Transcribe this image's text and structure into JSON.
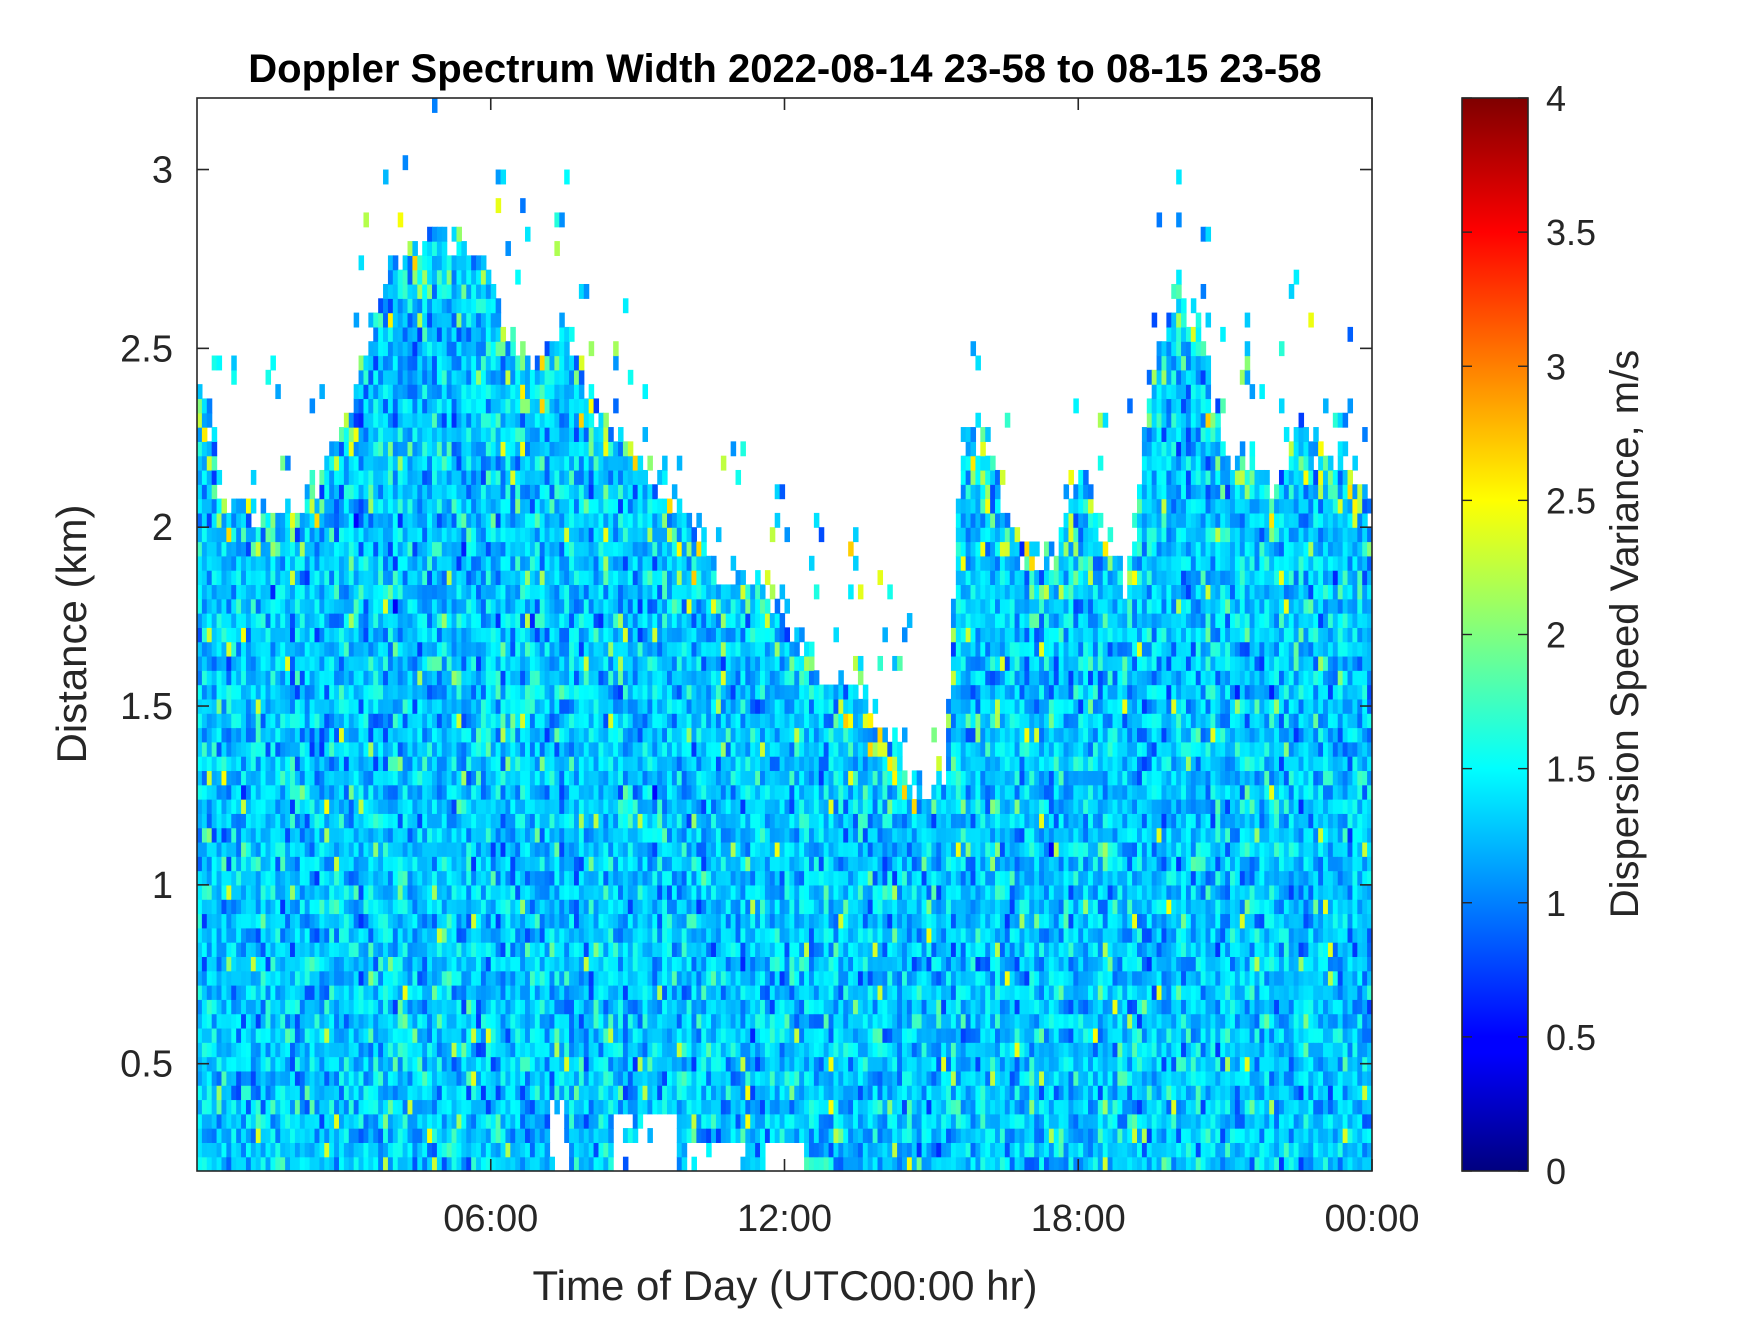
{
  "chart_data": {
    "type": "heatmap",
    "title": "Doppler Spectrum Width 2022-08-14 23-58 to 08-15 23-58",
    "xlabel": "Time of Day (UTC00:00 hr)",
    "ylabel": "Distance (km)",
    "x_range_hours": [
      0,
      24
    ],
    "y_range_km": [
      0.2,
      3.2
    ],
    "x_ticks": [
      {
        "value": 6,
        "label": "06:00"
      },
      {
        "value": 12,
        "label": "12:00"
      },
      {
        "value": 18,
        "label": "18:00"
      },
      {
        "value": 24,
        "label": "00:00"
      }
    ],
    "y_ticks": [
      {
        "value": 0.5,
        "label": "0.5"
      },
      {
        "value": 1,
        "label": "1"
      },
      {
        "value": 1.5,
        "label": "1.5"
      },
      {
        "value": 2,
        "label": "2"
      },
      {
        "value": 2.5,
        "label": "2.5"
      },
      {
        "value": 3,
        "label": "3"
      }
    ],
    "colorbar": {
      "label": "Dispersion Speed Variance, m/s",
      "range": [
        0,
        4
      ],
      "colormap": "jet",
      "ticks": [
        {
          "value": 0,
          "label": "0"
        },
        {
          "value": 0.5,
          "label": "0.5"
        },
        {
          "value": 1,
          "label": "1"
        },
        {
          "value": 1.5,
          "label": "1.5"
        },
        {
          "value": 2,
          "label": "2"
        },
        {
          "value": 2.5,
          "label": "2.5"
        },
        {
          "value": 3,
          "label": "3"
        },
        {
          "value": 3.5,
          "label": "3.5"
        },
        {
          "value": 4,
          "label": "4"
        }
      ]
    },
    "typical_value": 1.3,
    "signal_top_km": [
      [
        0.0,
        2.5
      ],
      [
        0.5,
        2.1
      ],
      [
        1.0,
        2.05
      ],
      [
        2.0,
        2.05
      ],
      [
        2.5,
        2.15
      ],
      [
        3.0,
        2.3
      ],
      [
        3.5,
        2.5
      ],
      [
        4.0,
        2.75
      ],
      [
        4.5,
        2.8
      ],
      [
        5.0,
        2.8
      ],
      [
        5.5,
        2.8
      ],
      [
        6.0,
        2.7
      ],
      [
        6.5,
        2.5
      ],
      [
        7.0,
        2.45
      ],
      [
        7.5,
        2.6
      ],
      [
        8.0,
        2.35
      ],
      [
        8.5,
        2.3
      ],
      [
        9.0,
        2.2
      ],
      [
        9.5,
        2.1
      ],
      [
        10.0,
        2.05
      ],
      [
        10.5,
        1.9
      ],
      [
        11.0,
        1.85
      ],
      [
        11.5,
        1.85
      ],
      [
        12.0,
        1.75
      ],
      [
        12.5,
        1.65
      ],
      [
        13.0,
        1.58
      ],
      [
        13.5,
        1.58
      ],
      [
        14.0,
        1.45
      ],
      [
        14.5,
        1.3
      ],
      [
        15.0,
        1.25
      ],
      [
        15.3,
        1.35
      ],
      [
        15.6,
        2.25
      ],
      [
        16.0,
        2.25
      ],
      [
        16.5,
        2.05
      ],
      [
        17.0,
        1.9
      ],
      [
        17.5,
        1.95
      ],
      [
        18.0,
        2.2
      ],
      [
        18.5,
        2.0
      ],
      [
        19.0,
        1.85
      ],
      [
        19.5,
        2.4
      ],
      [
        20.0,
        2.7
      ],
      [
        20.5,
        2.55
      ],
      [
        21.0,
        2.2
      ],
      [
        21.5,
        2.2
      ],
      [
        22.0,
        2.1
      ],
      [
        22.5,
        2.3
      ],
      [
        23.0,
        2.2
      ],
      [
        23.5,
        2.15
      ],
      [
        24.0,
        2.05
      ]
    ],
    "gaps": [
      {
        "x": [
          7.2,
          7.6
        ],
        "y": [
          0.2,
          0.42
        ]
      },
      {
        "x": [
          8.5,
          9.8
        ],
        "y": [
          0.2,
          0.35
        ]
      },
      {
        "x": [
          10.0,
          11.2
        ],
        "y": [
          0.2,
          0.3
        ]
      },
      {
        "x": [
          11.6,
          12.4
        ],
        "y": [
          0.2,
          0.27
        ]
      }
    ]
  }
}
